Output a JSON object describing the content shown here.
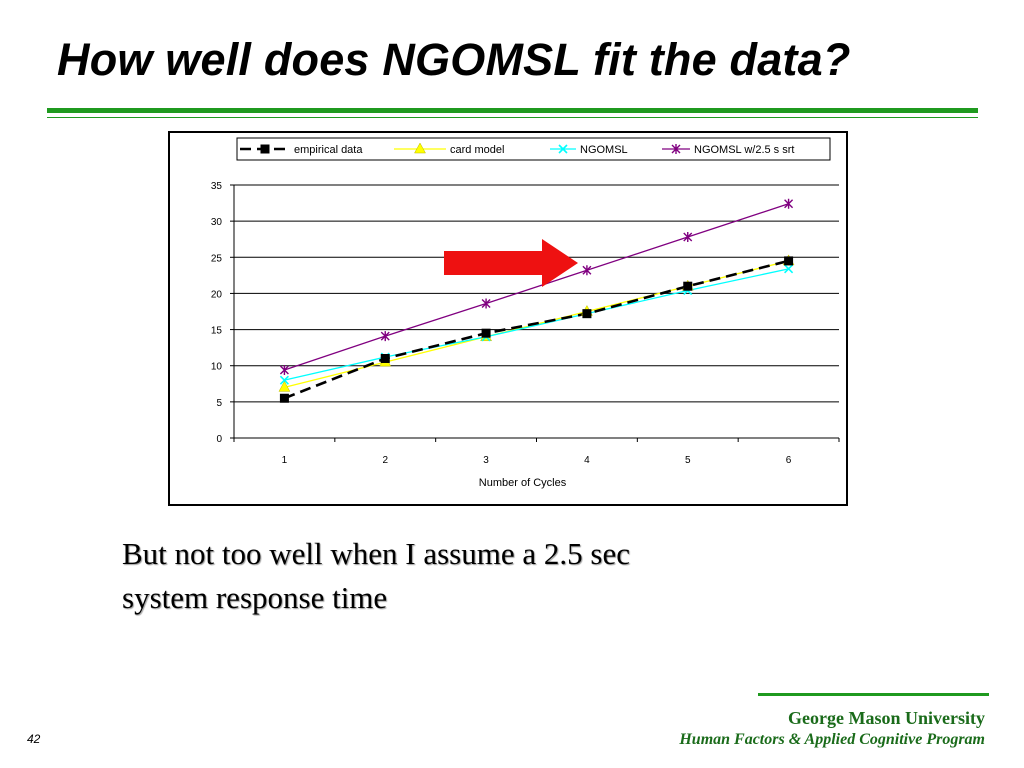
{
  "slide": {
    "title": "How well does NGOMSL fit the data?",
    "body_line1": "But not too well when I assume a 2.5 sec",
    "body_line2": "system response time",
    "footer_university": "George Mason University",
    "footer_program": "Human Factors & Applied Cognitive Program",
    "page_number": "42"
  },
  "chart_data": {
    "type": "line",
    "title": "",
    "xlabel": "Number of Cycles",
    "ylabel": "",
    "categories": [
      "1",
      "2",
      "3",
      "4",
      "5",
      "6"
    ],
    "ylim": [
      0,
      35
    ],
    "yticks": [
      "0",
      "5",
      "10",
      "15",
      "20",
      "25",
      "30",
      "35"
    ],
    "grid": "horizontal",
    "legend_position": "top",
    "series": [
      {
        "name": "empirical data",
        "values": [
          5.5,
          11,
          14.5,
          17.2,
          21,
          24.5
        ],
        "color": "#000000",
        "marker": "square",
        "dash": true
      },
      {
        "name": "card model",
        "values": [
          7,
          10.5,
          14,
          17.5,
          21,
          24.5
        ],
        "color": "#ffff00",
        "marker": "triangle",
        "dash": false
      },
      {
        "name": "NGOMSL",
        "values": [
          8,
          11.2,
          14,
          17.2,
          20.4,
          23.4
        ],
        "color": "#00ffff",
        "marker": "x",
        "dash": false
      },
      {
        "name": "NGOMSL w/2.5 s srt",
        "values": [
          9.4,
          14.1,
          18.6,
          23.2,
          27.8,
          32.4
        ],
        "color": "#800080",
        "marker": "star",
        "dash": false
      }
    ],
    "annotation": {
      "type": "arrow",
      "color": "#ee1111",
      "points_to": "NGOMSL w/2.5 s srt"
    }
  }
}
